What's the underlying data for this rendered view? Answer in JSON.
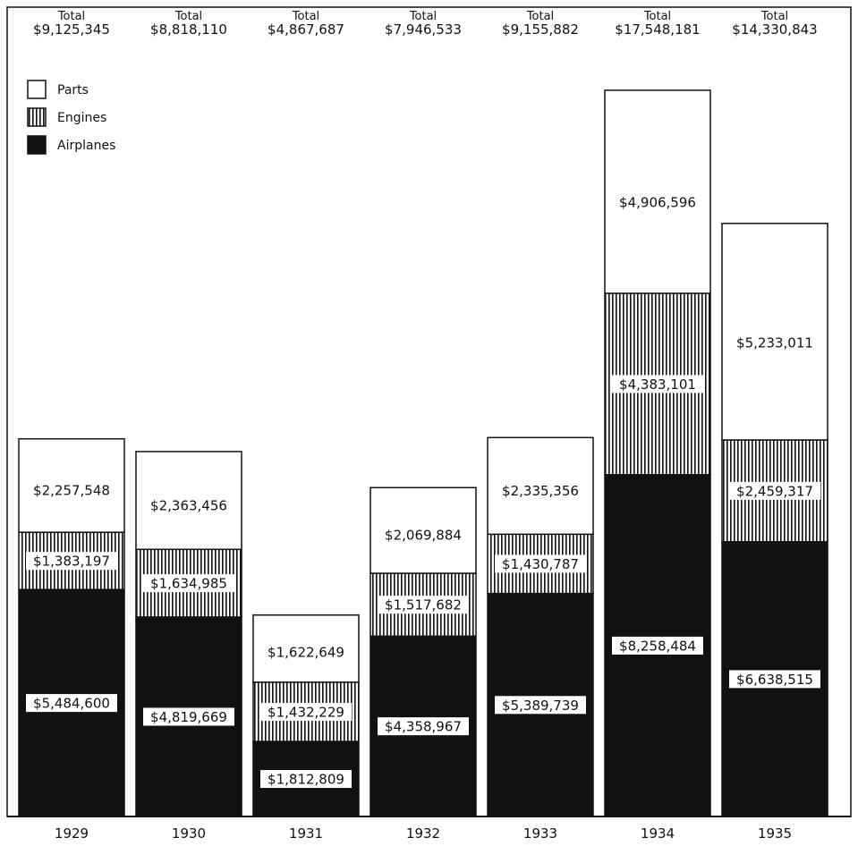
{
  "chart_data": {
    "type": "bar",
    "stacked": true,
    "categories": [
      "1929",
      "1930",
      "1931",
      "1932",
      "1933",
      "1934",
      "1935"
    ],
    "series": [
      {
        "name": "Airplanes",
        "pattern": "solid-black",
        "values": [
          5484600,
          4819669,
          1812809,
          4358967,
          5389739,
          8258484,
          6638515
        ],
        "labels": [
          "$5,484,600",
          "$4,819,669",
          "$1,812,809",
          "$4,358,967",
          "$5,389,739",
          "$8,258,484",
          "$6,638,515"
        ]
      },
      {
        "name": "Engines",
        "pattern": "vertical-hatch",
        "values": [
          1383197,
          1634985,
          1432229,
          1517682,
          1430787,
          4383101,
          2459317
        ],
        "labels": [
          "$1,383,197",
          "$1,634,985",
          "$1,432,229",
          "$1,517,682",
          "$1,430,787",
          "$4,383,101",
          "$2,459,317"
        ]
      },
      {
        "name": "Parts",
        "pattern": "white",
        "values": [
          2257548,
          2363456,
          1622649,
          2069884,
          2335356,
          4906596,
          5233011
        ],
        "labels": [
          "$2,257,548",
          "$2,363,456",
          "$1,622,649",
          "$2,069,884",
          "$2,335,356",
          "$4,906,596",
          "$5,233,011"
        ]
      }
    ],
    "totals": {
      "label": "Total",
      "values": [
        9125345,
        8818110,
        4867687,
        7946533,
        9155882,
        17548181,
        14330843
      ],
      "labels": [
        "$9,125,345",
        "$8,818,110",
        "$4,867,687",
        "$7,946,533",
        "$9,155,882",
        "$17,548,181",
        "$14,330,843"
      ]
    },
    "legend": {
      "placement": "top-left",
      "entries": [
        {
          "name": "Parts",
          "pattern": "white"
        },
        {
          "name": "Engines",
          "pattern": "vertical-hatch"
        },
        {
          "name": "Airplanes",
          "pattern": "solid-black"
        }
      ]
    },
    "ylim": [
      0,
      18000000
    ],
    "grid": false,
    "title": "",
    "xlabel": "",
    "ylabel": "",
    "colors": {
      "ink": "#111111",
      "paper": "#ffffff"
    }
  }
}
